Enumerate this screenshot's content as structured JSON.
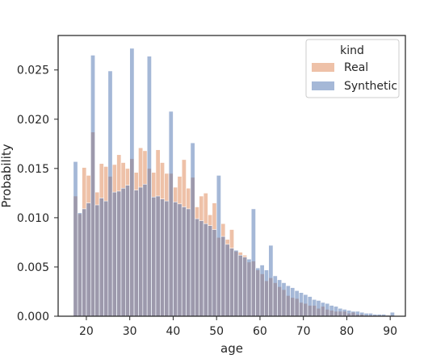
{
  "chart_data": {
    "type": "bar",
    "subtype": "overlaid-histogram",
    "xlabel": "age",
    "ylabel": "Probability",
    "xlim": [
      13.5,
      93.5
    ],
    "ylim": [
      0,
      0.0285
    ],
    "xticks": [
      20,
      30,
      40,
      50,
      60,
      70,
      80,
      90
    ],
    "xtick_labels": [
      "20",
      "30",
      "40",
      "50",
      "60",
      "70",
      "80",
      "90"
    ],
    "yticks": [
      0,
      0.005,
      0.01,
      0.015,
      0.02,
      0.025
    ],
    "ytick_labels": [
      "0.000",
      "0.005",
      "0.010",
      "0.015",
      "0.020",
      "0.025"
    ],
    "grid": false,
    "bin_start": 17,
    "bin_width": 1,
    "legend": {
      "title": "kind",
      "position": "top-right"
    },
    "series": [
      {
        "name": "Real",
        "color": "#dd8452",
        "values": [
          0.0122,
          0.0104,
          0.0151,
          0.0143,
          0.0187,
          0.0126,
          0.0155,
          0.0152,
          0.0142,
          0.0154,
          0.0164,
          0.0156,
          0.015,
          0.016,
          0.0146,
          0.0171,
          0.0168,
          0.015,
          0.0146,
          0.0169,
          0.0156,
          0.0145,
          0.0145,
          0.0131,
          0.0142,
          0.0159,
          0.013,
          0.0141,
          0.0111,
          0.0122,
          0.0125,
          0.0103,
          0.0115,
          0.008,
          0.0094,
          0.0078,
          0.0088,
          0.0066,
          0.0065,
          0.0062,
          0.0055,
          0.0056,
          0.0047,
          0.0043,
          0.0036,
          0.0039,
          0.0034,
          0.003,
          0.0027,
          0.0021,
          0.0019,
          0.0018,
          0.0014,
          0.0013,
          0.0011,
          0.0011,
          0.0008,
          0.001,
          0.0007,
          0.0006,
          0.0005,
          0.0005,
          0.0005,
          0.0003,
          0.0004,
          0.0002,
          0.0002,
          0.0001,
          0.0001,
          0.0001,
          0.0001,
          0.0001,
          0.0001,
          0.0001
        ]
      },
      {
        "name": "Synthetic",
        "color": "#4c72b0",
        "values": [
          0.0157,
          0.0105,
          0.0109,
          0.0115,
          0.0265,
          0.0113,
          0.012,
          0.0117,
          0.0249,
          0.0126,
          0.0127,
          0.013,
          0.0133,
          0.0272,
          0.0128,
          0.0131,
          0.0134,
          0.0264,
          0.0121,
          0.0122,
          0.0119,
          0.0117,
          0.0208,
          0.0116,
          0.0114,
          0.0111,
          0.0109,
          0.0176,
          0.0099,
          0.0097,
          0.0094,
          0.0092,
          0.0088,
          0.0143,
          0.0081,
          0.0073,
          0.0069,
          0.0067,
          0.0062,
          0.006,
          0.0058,
          0.0109,
          0.0049,
          0.0052,
          0.0047,
          0.0072,
          0.0041,
          0.0037,
          0.0034,
          0.0031,
          0.0029,
          0.0026,
          0.0024,
          0.0022,
          0.002,
          0.0017,
          0.0016,
          0.0014,
          0.0013,
          0.0011,
          0.001,
          0.0008,
          0.0007,
          0.0006,
          0.0005,
          0.0005,
          0.0004,
          0.0003,
          0.0003,
          0.0002,
          0.0002,
          0.0002,
          0.0001,
          0.0004
        ]
      }
    ]
  }
}
